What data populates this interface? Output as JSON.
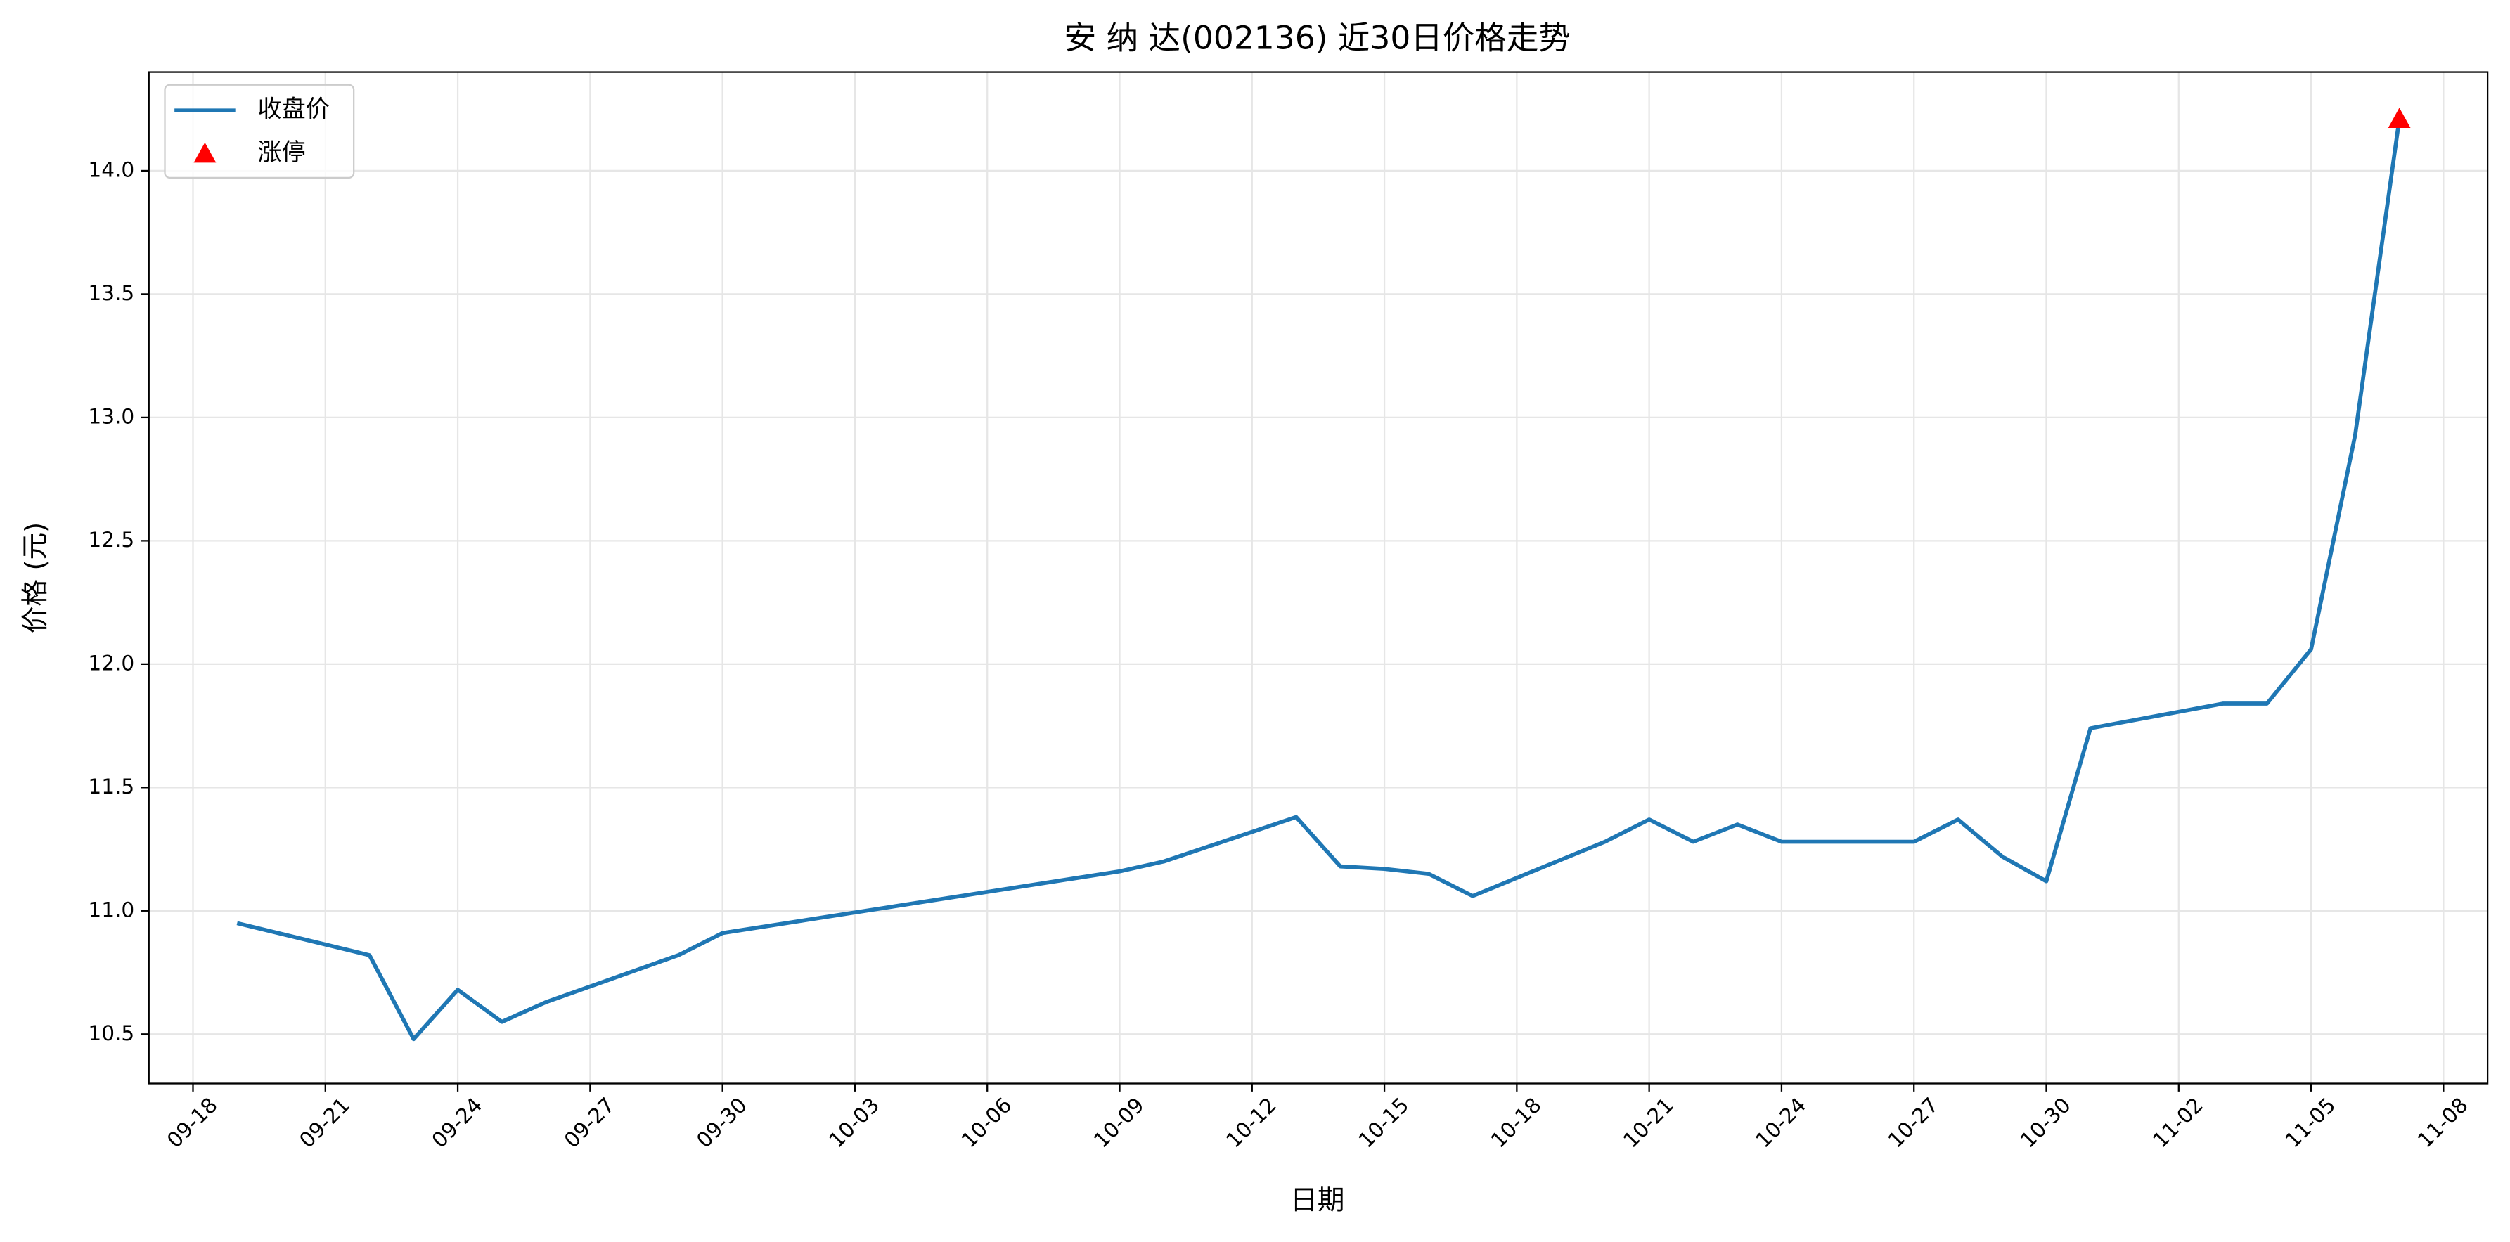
{
  "chart_data": {
    "type": "line",
    "title": "安 纳 达(002136) 近30日价格走势",
    "x_label": "日期",
    "y_label": "价格 (元)",
    "series": [
      {
        "name": "收盘价",
        "type": "line",
        "color": "#1f77b4",
        "x": [
          "09-19",
          "09-22",
          "09-23",
          "09-24",
          "09-25",
          "09-26",
          "09-29",
          "09-30",
          "10-09",
          "10-10",
          "10-13",
          "10-14",
          "10-15",
          "10-16",
          "10-17",
          "10-20",
          "10-21",
          "10-22",
          "10-23",
          "10-24",
          "10-27",
          "10-28",
          "10-29",
          "10-30",
          "10-31",
          "11-03",
          "11-04",
          "11-05",
          "11-06",
          "11-07"
        ],
        "values": [
          10.95,
          10.82,
          10.48,
          10.68,
          10.55,
          10.63,
          10.82,
          10.91,
          11.16,
          11.2,
          11.38,
          11.18,
          11.17,
          11.15,
          11.06,
          11.28,
          11.37,
          11.28,
          11.35,
          11.28,
          11.28,
          11.37,
          11.22,
          11.12,
          11.74,
          11.84,
          11.84,
          12.06,
          12.93,
          14.21
        ]
      },
      {
        "name": "涨停",
        "type": "scatter",
        "marker": "triangle",
        "color": "#ff0000",
        "x": [
          "11-07"
        ],
        "values": [
          14.21
        ]
      }
    ],
    "xlim": [
      "09-17",
      "11-09"
    ],
    "xticks": [
      "09-18",
      "09-21",
      "09-24",
      "09-27",
      "09-30",
      "10-03",
      "10-06",
      "10-09",
      "10-12",
      "10-15",
      "10-18",
      "10-21",
      "10-24",
      "10-27",
      "10-30",
      "11-02",
      "11-05",
      "11-08"
    ],
    "ylim": [
      10.3,
      14.4
    ],
    "yticks": [
      10.5,
      {
        "value": 11,
        "label": "11.0"
      },
      11.5,
      {
        "value": 12,
        "label": "12.0"
      },
      12.5,
      {
        "value": 13,
        "label": "13.0"
      },
      13.5,
      {
        "value": 14,
        "label": "14.0"
      }
    ],
    "grid": true,
    "legend": "upper left"
  }
}
